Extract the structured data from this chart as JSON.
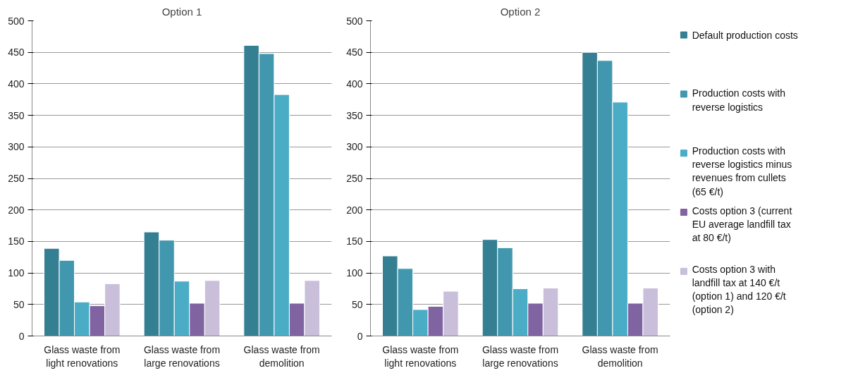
{
  "chart_data": [
    {
      "type": "bar",
      "title": "Option 1",
      "categories": [
        "Glass waste from light renovations",
        "Glass waste from large renovations",
        "Glass waste from demolition"
      ],
      "ylim": [
        0,
        500
      ],
      "yticks": [
        0,
        50,
        100,
        150,
        200,
        250,
        300,
        350,
        400,
        450,
        500
      ],
      "grid": "y",
      "legend": false,
      "series": [
        {
          "color": "#357f93",
          "values": [
            139,
            165,
            461
          ]
        },
        {
          "color": "#4198ae",
          "values": [
            120,
            152,
            448
          ]
        },
        {
          "color": "#4bacc6",
          "values": [
            54,
            87,
            383
          ]
        },
        {
          "color": "#8064a2",
          "values": [
            48,
            52,
            52
          ]
        },
        {
          "color": "#c9bfdb",
          "values": [
            83,
            88,
            88
          ]
        }
      ]
    },
    {
      "type": "bar",
      "title": "Option 2",
      "categories": [
        "Glass waste from light renovations",
        "Glass waste from large renovations",
        "Glass waste from demolition"
      ],
      "ylim": [
        0,
        500
      ],
      "yticks": [
        0,
        50,
        100,
        150,
        200,
        250,
        300,
        350,
        400,
        450,
        500
      ],
      "grid": "y",
      "legend": "right",
      "series": [
        {
          "name": "Default production costs",
          "color": "#357f93",
          "values": [
            127,
            153,
            450
          ]
        },
        {
          "name": "Production costs with reverse logistics",
          "color": "#4198ae",
          "values": [
            107,
            140,
            437
          ]
        },
        {
          "name": "Production costs with reverse logistics minus revenues from cullets (65 €/t)",
          "color": "#4bacc6",
          "values": [
            42,
            75,
            371
          ]
        },
        {
          "name": "Costs option 3 (current EU average landfill tax at 80 €/t)",
          "color": "#8064a2",
          "values": [
            47,
            52,
            52
          ]
        },
        {
          "name": "Costs option 3 with landfill tax at 140 €/t (option 1) and 120 €/t (option 2)",
          "color": "#c9bfdb",
          "values": [
            71,
            76,
            76
          ]
        }
      ]
    }
  ]
}
